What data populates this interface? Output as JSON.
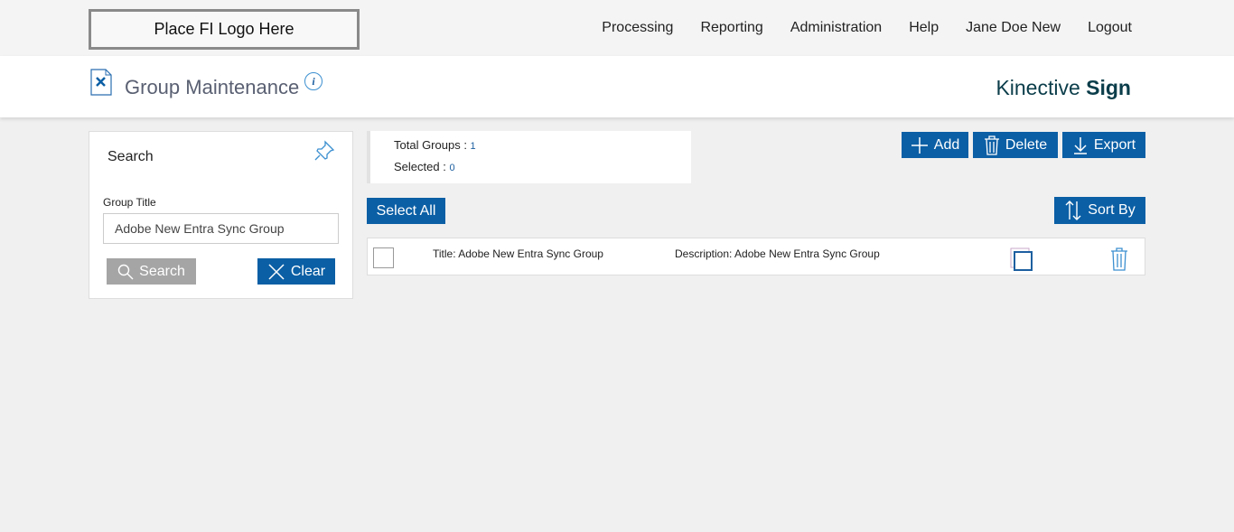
{
  "header": {
    "logo": "Place FI Logo Here",
    "nav": [
      "Processing",
      "Reporting",
      "Administration",
      "Help",
      "Jane Doe New",
      "Logout"
    ]
  },
  "page": {
    "title": "Group Maintenance",
    "info": "i",
    "brand_light": "Kinective",
    "brand_bold": "Sign"
  },
  "search": {
    "heading": "Search",
    "field_label": "Group Title",
    "field_value": "Adobe New Entra Sync Group",
    "search_label": "Search",
    "clear_label": "Clear"
  },
  "stats": {
    "total_label": "Total Groups : ",
    "total": "1",
    "selected_label": "Selected : ",
    "selected": "0"
  },
  "toolbar": {
    "add": "Add",
    "delete": "Delete",
    "export": "Export",
    "select_all": "Select All",
    "sort_by": "Sort By"
  },
  "rows": [
    {
      "title": "Title:  Adobe New Entra Sync Group",
      "description": "Description: Adobe New Entra Sync Group"
    }
  ],
  "colors": {
    "accent": "#0b5fa5",
    "brand": "#0b3d4a"
  }
}
